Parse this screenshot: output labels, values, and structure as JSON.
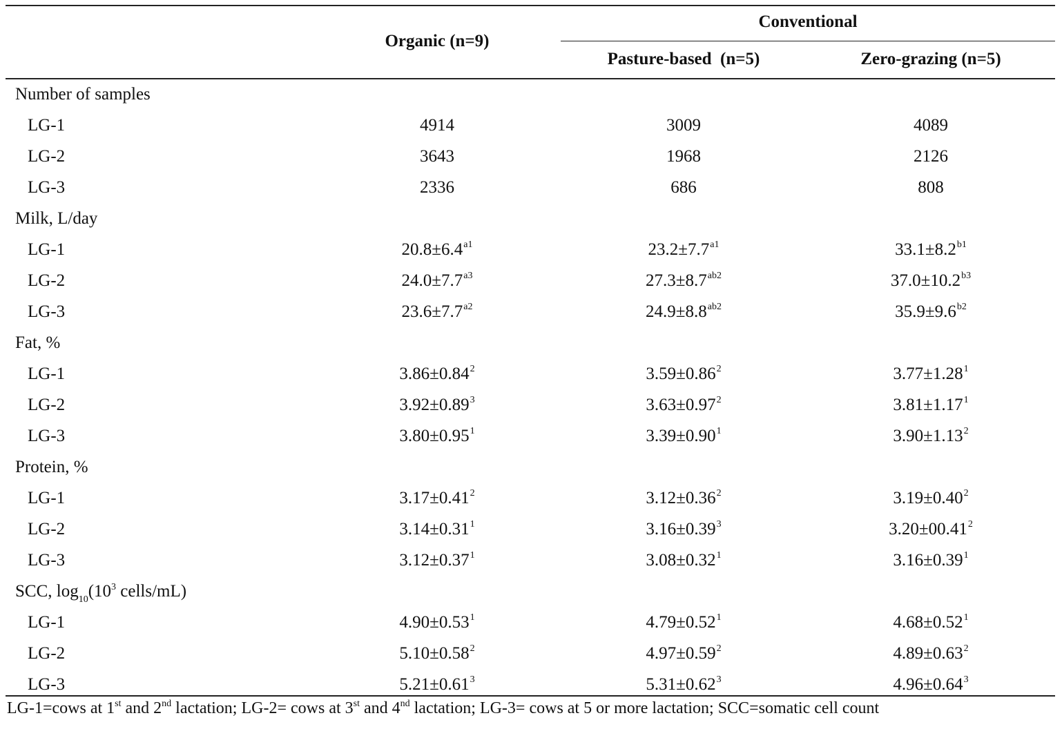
{
  "header": {
    "organic": "Organic (n=9)",
    "conventional": "Conventional",
    "pasture": "Pasture-based  (n=5)",
    "zero": "Zero-grazing (n=5)"
  },
  "sections": [
    {
      "title": "Number of samples",
      "rows": [
        {
          "label": "LG-1",
          "cells": [
            {
              "v": "4914",
              "s": ""
            },
            {
              "v": "3009",
              "s": ""
            },
            {
              "v": "4089",
              "s": ""
            }
          ]
        },
        {
          "label": "LG-2",
          "cells": [
            {
              "v": "3643",
              "s": ""
            },
            {
              "v": "1968",
              "s": ""
            },
            {
              "v": "2126",
              "s": ""
            }
          ]
        },
        {
          "label": "LG-3",
          "cells": [
            {
              "v": "2336",
              "s": ""
            },
            {
              "v": "686",
              "s": ""
            },
            {
              "v": "808",
              "s": ""
            }
          ]
        }
      ]
    },
    {
      "title": "Milk, L/day",
      "rows": [
        {
          "label": "LG-1",
          "cells": [
            {
              "v": "20.8±6.4",
              "s": "a1"
            },
            {
              "v": "23.2±7.7",
              "s": "a1"
            },
            {
              "v": "33.1±8.2",
              "s": "b1"
            }
          ]
        },
        {
          "label": "LG-2",
          "cells": [
            {
              "v": "24.0±7.7",
              "s": "a3"
            },
            {
              "v": "27.3±8.7",
              "s": "ab2"
            },
            {
              "v": "37.0±10.2",
              "s": "b3"
            }
          ]
        },
        {
          "label": "LG-3",
          "cells": [
            {
              "v": "23.6±7.7",
              "s": "a2"
            },
            {
              "v": "24.9±8.8",
              "s": "ab2"
            },
            {
              "v": "35.9±9.6",
              "s": "b2"
            }
          ]
        }
      ]
    },
    {
      "title": "Fat, %",
      "rows": [
        {
          "label": "LG-1",
          "cells": [
            {
              "v": "3.86±0.84",
              "s": "2"
            },
            {
              "v": "3.59±0.86",
              "s": "2"
            },
            {
              "v": "3.77±1.28",
              "s": "1"
            }
          ]
        },
        {
          "label": "LG-2",
          "cells": [
            {
              "v": "3.92±0.89",
              "s": "3"
            },
            {
              "v": "3.63±0.97",
              "s": "2"
            },
            {
              "v": "3.81±1.17",
              "s": "1"
            }
          ]
        },
        {
          "label": "LG-3",
          "cells": [
            {
              "v": "3.80±0.95",
              "s": "1"
            },
            {
              "v": "3.39±0.90",
              "s": "1"
            },
            {
              "v": "3.90±1.13",
              "s": "2"
            }
          ]
        }
      ]
    },
    {
      "title": "Protein, %",
      "rows": [
        {
          "label": "LG-1",
          "cells": [
            {
              "v": "3.17±0.41",
              "s": "2"
            },
            {
              "v": "3.12±0.36",
              "s": "2"
            },
            {
              "v": "3.19±0.40",
              "s": "2"
            }
          ]
        },
        {
          "label": "LG-2",
          "cells": [
            {
              "v": "3.14±0.31",
              "s": "1"
            },
            {
              "v": "3.16±0.39",
              "s": "3"
            },
            {
              "v": "3.20±00.41",
              "s": "2"
            }
          ]
        },
        {
          "label": "LG-3",
          "cells": [
            {
              "v": "3.12±0.37",
              "s": "1"
            },
            {
              "v": "3.08±0.32",
              "s": "1"
            },
            {
              "v": "3.16±0.39",
              "s": "1"
            }
          ]
        }
      ]
    },
    {
      "title_parts": [
        "SCC, log",
        "10",
        "(10",
        "3",
        " cells/mL)"
      ],
      "rows": [
        {
          "label": "LG-1",
          "cells": [
            {
              "v": "4.90±0.53",
              "s": "1"
            },
            {
              "v": "4.79±0.52",
              "s": "1"
            },
            {
              "v": "4.68±0.52",
              "s": "1"
            }
          ]
        },
        {
          "label": "LG-2",
          "cells": [
            {
              "v": "5.10±0.58",
              "s": "2"
            },
            {
              "v": "4.97±0.59",
              "s": "2"
            },
            {
              "v": "4.89±0.63",
              "s": "2"
            }
          ]
        },
        {
          "label": "LG-3",
          "cells": [
            {
              "v": "5.21±0.61",
              "s": "3"
            },
            {
              "v": "5.31±0.62",
              "s": "3"
            },
            {
              "v": "4.96±0.64",
              "s": "3"
            }
          ]
        }
      ]
    }
  ],
  "footnote": {
    "p1": "LG-1=cows at 1",
    "sup1": "st",
    "p2": " and 2",
    "sup2": "nd",
    "p3": " lactation; LG-2= cows at 3",
    "sup3": "st",
    "p4": " and 4",
    "sup4": "nd",
    "p5": " lactation; LG-3= cows at 5 or more lactation; SCC=somatic cell count"
  }
}
